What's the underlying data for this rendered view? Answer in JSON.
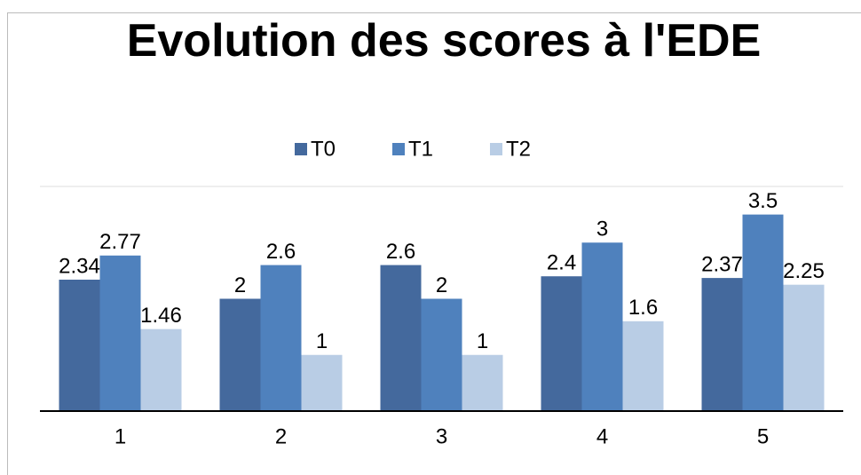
{
  "chart_data": {
    "type": "bar",
    "title": "Evolution des scores à l'EDE",
    "categories": [
      "1",
      "2",
      "3",
      "4",
      "5"
    ],
    "series": [
      {
        "name": "T0",
        "color": "#44699d",
        "values": [
          2.34,
          2,
          2.6,
          2.4,
          2.37
        ]
      },
      {
        "name": "T1",
        "color": "#4f81bd",
        "values": [
          2.77,
          2.6,
          2,
          3,
          3.5
        ]
      },
      {
        "name": "T2",
        "color": "#b9cde5",
        "values": [
          1.46,
          1,
          1,
          1.6,
          2.25
        ]
      }
    ],
    "ylim": [
      0,
      4
    ],
    "legend": "top"
  }
}
